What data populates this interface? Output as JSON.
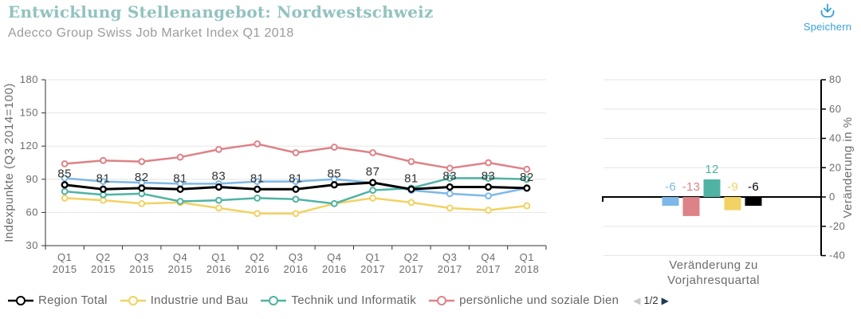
{
  "header": {
    "title": "Entwicklung Stellenangebot: Nordwestschweiz",
    "subtitle": "Adecco Group Swiss Job Market Index Q1 2018",
    "save_label": "Speichern"
  },
  "colors": {
    "title_teal": "#92c2c0",
    "save_blue": "#3aa0d6",
    "axis_text": "#6d6d6d",
    "grid": "#e6e6e6",
    "axis_line": "#333333",
    "series_black": "#000000",
    "series_yellow": "#f2d263",
    "series_teal": "#4fb3a4",
    "series_pink": "#dd8287",
    "series_blue": "#7db8e8",
    "pagination_prev": "#c9c9c9",
    "pagination_next": "#1d3a55"
  },
  "chart_data": [
    {
      "type": "line",
      "ylabel": "Indexpunkte (Q3 2014=100)",
      "ylim": [
        30,
        180
      ],
      "yticks": [
        30,
        60,
        90,
        120,
        150,
        180
      ],
      "grid": "horizontal",
      "categories": [
        {
          "q": "Q1",
          "year": "2015"
        },
        {
          "q": "Q2",
          "year": "2015"
        },
        {
          "q": "Q3",
          "year": "2015"
        },
        {
          "q": "Q4",
          "year": "2015"
        },
        {
          "q": "Q1",
          "year": "2016"
        },
        {
          "q": "Q2",
          "year": "2016"
        },
        {
          "q": "Q3",
          "year": "2016"
        },
        {
          "q": "Q4",
          "year": "2016"
        },
        {
          "q": "Q1",
          "year": "2017"
        },
        {
          "q": "Q2",
          "year": "2017"
        },
        {
          "q": "Q3",
          "year": "2017"
        },
        {
          "q": "Q4",
          "year": "2017"
        },
        {
          "q": "Q1",
          "year": "2018"
        }
      ],
      "series": [
        {
          "name": "Region Total",
          "color": "#000000",
          "data_labels": true,
          "values": [
            85,
            81,
            82,
            81,
            83,
            81,
            81,
            85,
            87,
            81,
            83,
            83,
            82
          ]
        },
        {
          "name": "Industrie und Bau",
          "color": "#f2d263",
          "data_labels": false,
          "values": [
            73,
            71,
            68,
            69,
            64,
            59,
            59,
            68,
            73,
            69,
            64,
            62,
            66
          ]
        },
        {
          "name": "Technik und Informatik",
          "color": "#4fb3a4",
          "data_labels": false,
          "values": [
            79,
            76,
            77,
            70,
            71,
            73,
            72,
            68,
            80,
            82,
            91,
            91,
            90
          ]
        },
        {
          "name": "persönliche und soziale Dien",
          "color": "#dd8287",
          "data_labels": false,
          "values": [
            104,
            107,
            106,
            110,
            117,
            122,
            114,
            119,
            114,
            106,
            100,
            105,
            99
          ]
        },
        {
          "name": "",
          "color": "#7db8e8",
          "data_labels": false,
          "values": [
            91,
            88,
            87,
            86,
            86,
            88,
            88,
            90,
            87,
            80,
            77,
            75,
            82
          ]
        }
      ]
    },
    {
      "type": "bar",
      "ylabel": "Veränderung in %",
      "xlabel": "Veränderung zu Vorjahresquartal",
      "ylim": [
        -40,
        80
      ],
      "yticks": [
        -40,
        -20,
        0,
        20,
        40,
        60,
        80
      ],
      "bars": [
        {
          "value": -6,
          "label": "-6",
          "color": "#7db8e8"
        },
        {
          "value": -13,
          "label": "-13",
          "color": "#dd8287"
        },
        {
          "value": 12,
          "label": "12",
          "color": "#4fb3a4"
        },
        {
          "value": -9,
          "label": "-9",
          "color": "#f2d263"
        },
        {
          "value": -6,
          "label": "-6",
          "color": "#000000"
        }
      ]
    }
  ],
  "legend": {
    "items": [
      {
        "label": "Region Total",
        "color": "#000000"
      },
      {
        "label": "Industrie und Bau",
        "color": "#f2d263"
      },
      {
        "label": "Technik und Informatik",
        "color": "#4fb3a4"
      },
      {
        "label": "persönliche und soziale Dien",
        "color": "#dd8287"
      }
    ],
    "pagination": {
      "page_label": "1/2"
    }
  }
}
